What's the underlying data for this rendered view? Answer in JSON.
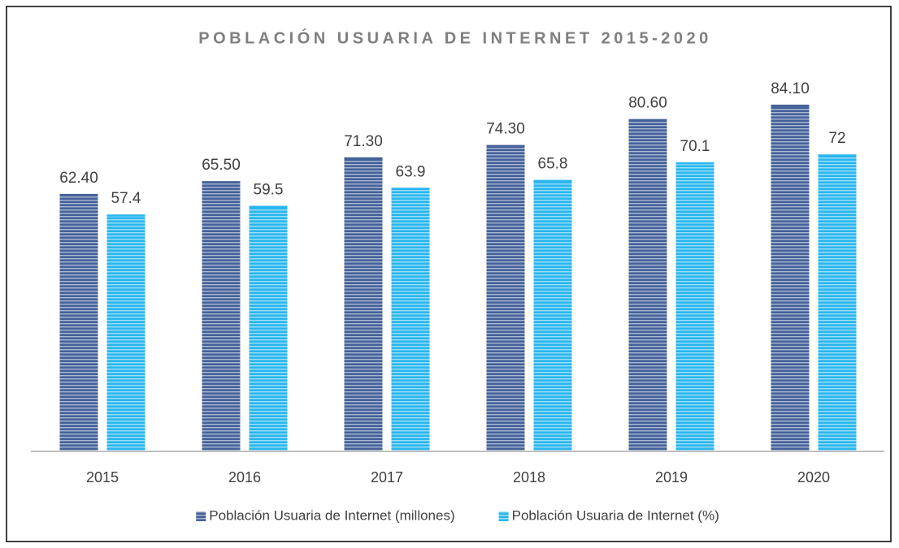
{
  "chart_data": {
    "type": "bar",
    "title": "POBLACIÓN USUARIA DE INTERNET 2015-2020",
    "categories": [
      "2015",
      "2016",
      "2017",
      "2018",
      "2019",
      "2020"
    ],
    "series": [
      {
        "name": "Población Usuaria de Internet (millones)",
        "color": "#44619a",
        "values": [
          62.4,
          65.5,
          71.3,
          74.3,
          80.6,
          84.1
        ],
        "value_labels": [
          "62.40",
          "65.50",
          "71.30",
          "74.30",
          "80.60",
          "84.10"
        ]
      },
      {
        "name": "Población Usuaria de Internet (%)",
        "color": "#29b6ee",
        "values": [
          57.4,
          59.5,
          63.9,
          65.8,
          70.1,
          72
        ]
      }
    ],
    "ylim": [
      0,
      90
    ],
    "grid": false,
    "legend": "bottom"
  }
}
